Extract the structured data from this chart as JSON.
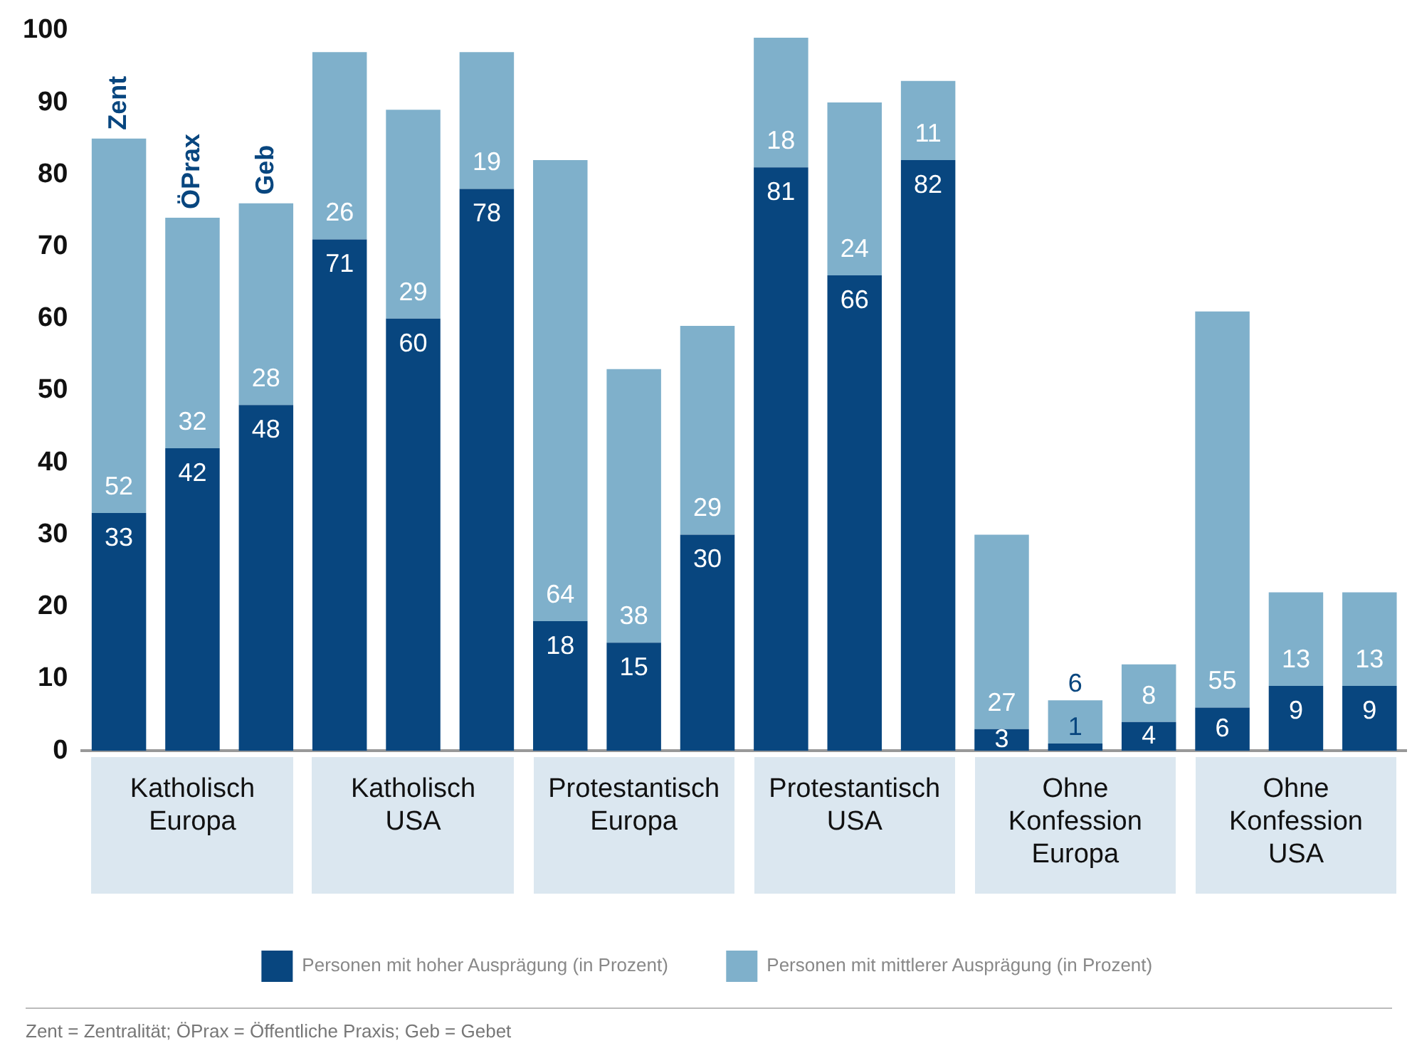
{
  "chart_data": {
    "type": "bar",
    "stacked": true,
    "data_labels": true,
    "grid": false,
    "legend": "bottom",
    "categories": [
      null,
      "Katholisch\nEuropa",
      null,
      null,
      "Katholisch\nUSA",
      null,
      null,
      "Protestantisch\nEuropa",
      null,
      null,
      "Protestantisch\nUSA",
      null,
      null,
      "Ohne\nKonfession\nEuropa",
      null,
      null,
      "Ohne\nKonfession\nUSA",
      null
    ],
    "ylim": [
      0,
      100
    ],
    "yticks": [
      0,
      10,
      20,
      30,
      40,
      50,
      60,
      70,
      80,
      90,
      100
    ],
    "series": [
      {
        "name": "Personen mit hoher Ausprägung (in Prozent)",
        "color": "#08467f",
        "values": [
          33,
          42,
          48,
          71,
          60,
          78,
          18,
          15,
          30,
          81,
          66,
          82,
          3,
          1,
          4,
          6,
          9,
          9
        ]
      },
      {
        "name": "Personen mit mittlerer Ausprägung (in Prozent)",
        "color": "#7fb0cb",
        "values": [
          52,
          32,
          28,
          26,
          29,
          19,
          64,
          38,
          29,
          18,
          24,
          11,
          27,
          6,
          8,
          55,
          13,
          13
        ]
      }
    ],
    "annotations": [
      {
        "text": "Zent",
        "y": 85
      },
      {
        "text": "ÖPrax",
        "y": 74
      },
      {
        "text": "Geb",
        "y": 76
      },
      "Zent = Zentralität; ÖPrax = Öffentliche Praxis; Geb = Gebet"
    ]
  }
}
